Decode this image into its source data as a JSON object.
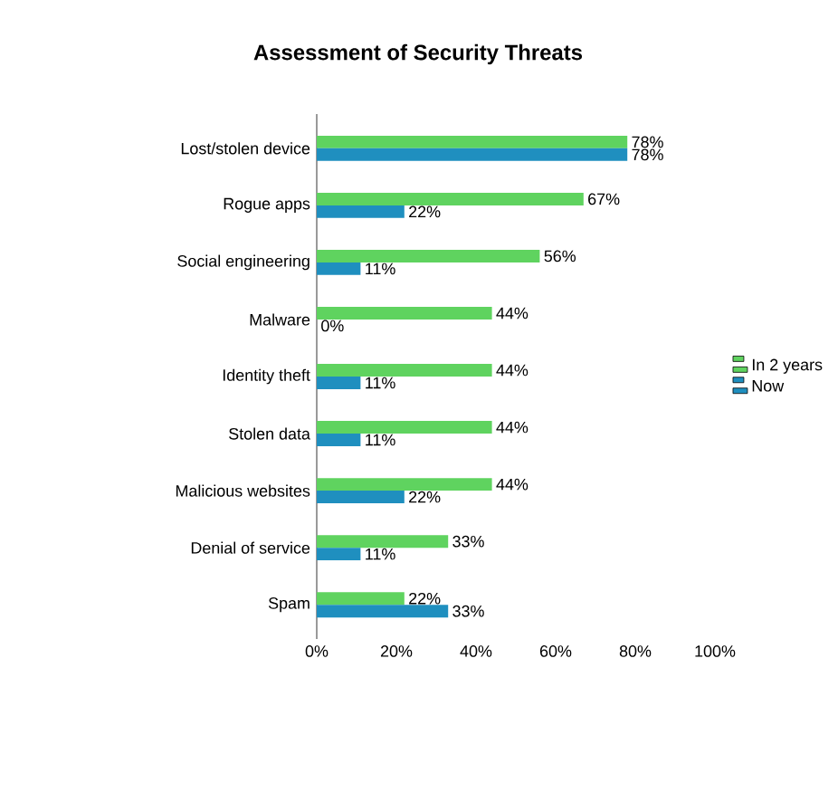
{
  "chart_data": {
    "type": "bar",
    "orientation": "horizontal",
    "title": "Assessment of Security Threats",
    "categories": [
      "Lost/stolen device",
      "Rogue apps",
      "Social engineering",
      "Malware",
      "Identity theft",
      "Stolen data",
      "Malicious websites",
      "Denial of service",
      "Spam"
    ],
    "series": [
      {
        "name": "In 2 years",
        "color": "#5fd35f",
        "values": [
          78,
          67,
          56,
          44,
          44,
          44,
          44,
          33,
          22
        ],
        "value_labels": [
          "78%",
          "67%",
          "56%",
          "44%",
          "44%",
          "44%",
          "44%",
          "33%",
          "22%"
        ]
      },
      {
        "name": "Now",
        "color": "#1f8fbf",
        "values": [
          78,
          22,
          11,
          0,
          11,
          11,
          22,
          11,
          33
        ],
        "value_labels": [
          "78%",
          "22%",
          "11%",
          "0%",
          "11%",
          "11%",
          "22%",
          "11%",
          "33%"
        ]
      }
    ],
    "xlim": [
      0,
      100
    ],
    "xticks": [
      {
        "value": 0,
        "label": "0%"
      },
      {
        "value": 20,
        "label": "20%"
      },
      {
        "value": 40,
        "label": "40%"
      },
      {
        "value": 60,
        "label": "60%"
      },
      {
        "value": 80,
        "label": "80%"
      },
      {
        "value": 100,
        "label": "100%"
      }
    ],
    "legend": "right",
    "grid": false
  }
}
